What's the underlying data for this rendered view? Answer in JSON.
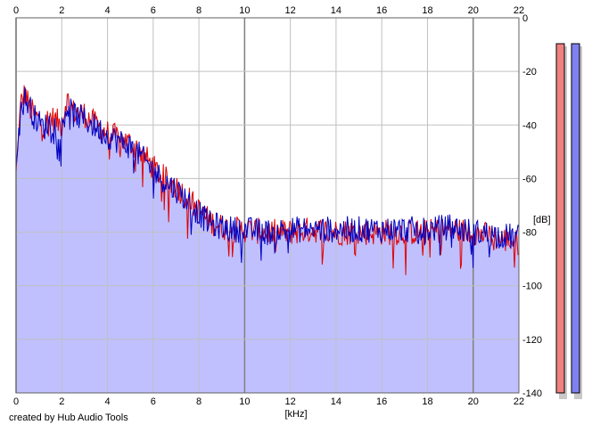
{
  "credit": "created by Hub Audio Tools",
  "chart_data": {
    "type": "area",
    "title": "",
    "xlabel": "[kHz]",
    "ylabel": "[dB]",
    "x_unit": "kHz",
    "xlim": [
      0,
      22
    ],
    "ylim": [
      -140,
      0
    ],
    "x_ticks": [
      0,
      2,
      4,
      6,
      8,
      10,
      12,
      14,
      16,
      18,
      20,
      22
    ],
    "x_tick_labels": [
      "0",
      "2",
      "4",
      "6",
      "8",
      "10",
      "12",
      "14",
      "16",
      "18",
      "20",
      "22"
    ],
    "y_ticks": [
      0,
      -20,
      -40,
      -60,
      -80,
      -100,
      -120,
      -140
    ],
    "y_tick_labels": [
      "0",
      "-20",
      "-40",
      "-60",
      "-80",
      "-100",
      "-120",
      "-140"
    ],
    "grid": true,
    "colors": {
      "area_fill": "#c0c0ff",
      "channel_1": "#e00000",
      "channel_2": "#0000c0",
      "meter_1": "#f08080",
      "meter_2": "#8080f0",
      "grid": "#c0c0c0",
      "grid_major": "#808080"
    },
    "series": [
      {
        "color": "#e00000",
        "x": [
          0,
          0.2,
          0.4,
          0.6,
          0.8,
          1,
          1.2,
          1.5,
          2,
          2.2,
          2.5,
          3,
          3.5,
          4,
          4.5,
          5,
          5.5,
          6,
          6.5,
          7,
          7.5,
          8,
          8.5,
          9,
          9.5,
          10,
          11,
          12,
          13,
          14,
          15,
          16,
          17,
          18,
          19,
          20,
          21,
          22
        ],
        "values": [
          -58,
          -32,
          -28,
          -34,
          -36,
          -38,
          -40,
          -37,
          -40,
          -30,
          -35,
          -36,
          -40,
          -43,
          -45,
          -47,
          -50,
          -56,
          -60,
          -63,
          -67,
          -72,
          -76,
          -78,
          -79,
          -79,
          -80,
          -80,
          -79,
          -80,
          -80,
          -80,
          -80,
          -80,
          -79,
          -80,
          -82,
          -84
        ]
      },
      {
        "color": "#0000c0",
        "x": [
          0,
          0.2,
          0.4,
          0.6,
          0.8,
          1,
          1.2,
          1.5,
          2,
          2.2,
          2.5,
          3,
          3.5,
          4,
          4.5,
          5,
          5.5,
          6,
          6.5,
          7,
          7.5,
          8,
          8.5,
          9,
          9.5,
          10,
          11,
          12,
          13,
          14,
          15,
          16,
          17,
          18,
          19,
          20,
          21,
          22
        ],
        "values": [
          -55,
          -34,
          -30,
          -33,
          -37,
          -39,
          -41,
          -39,
          -41,
          -33,
          -36,
          -38,
          -41,
          -44,
          -46,
          -48,
          -52,
          -57,
          -61,
          -64,
          -68,
          -73,
          -77,
          -78,
          -79,
          -79,
          -80,
          -79,
          -79,
          -79,
          -79,
          -79,
          -79,
          -79,
          -78,
          -80,
          -81,
          -82
        ]
      }
    ],
    "meters": [
      {
        "color": "#f08080",
        "level_db": -6
      },
      {
        "color": "#8080f0",
        "level_db": -6
      }
    ]
  }
}
